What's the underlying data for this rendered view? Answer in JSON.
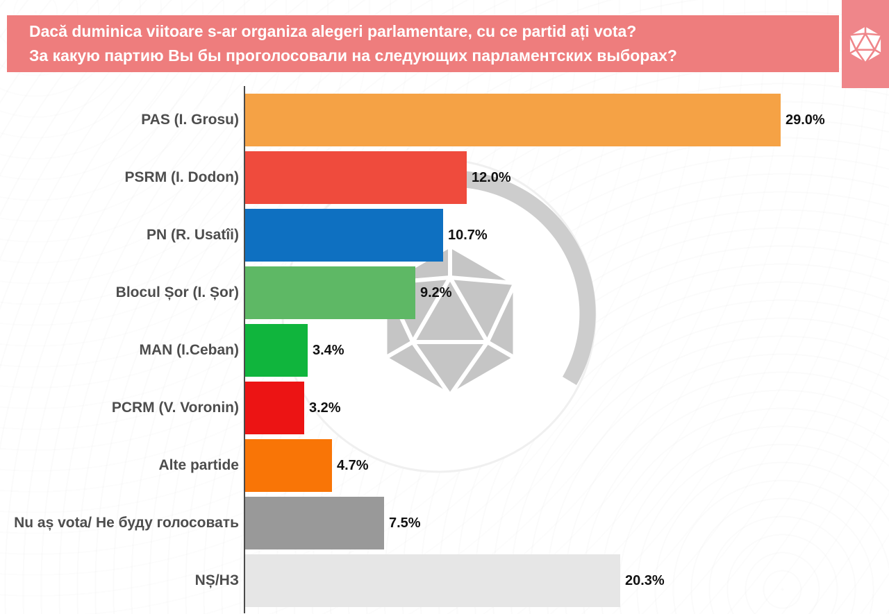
{
  "header": {
    "line1": "Dacă duminica viitoare s-ar organiza alegeri parlamentare, cu ce partid ați vota?",
    "line2": "За какую партию Вы бы проголосовали на следующих парламентских выборах?",
    "bg_color": "#ee7d7d",
    "text_color": "#ffffff"
  },
  "logo": {
    "icon": "d20-icosahedron",
    "box_color": "#ef868a",
    "icon_color": "#ffffff"
  },
  "watermark": {
    "icon": "d20-icosahedron",
    "ring_color": "#cdcdcd",
    "d20_color": "#c5c5c5",
    "circle_color": "#ffffff",
    "circle_edge_color": "#f0f0f0"
  },
  "chart_data": {
    "type": "bar",
    "orientation": "horizontal",
    "grid": false,
    "xlim": [
      0,
      30
    ],
    "axis_color": "#4a4a4a",
    "label_color": "#4d4d4d",
    "value_color": "#111111",
    "categories": [
      "PAS (I. Grosu)",
      "PSRM (I. Dodon)",
      "PN (R. Usatîi)",
      "Blocul Șor (I. Șor)",
      "MAN (I.Ceban)",
      "PCRM (V. Voronin)",
      "Alte partide",
      "Nu aș vota/ Не буду голосовать",
      "NȘ/НЗ"
    ],
    "values": [
      29.0,
      12.0,
      10.7,
      9.2,
      3.4,
      3.2,
      4.7,
      7.5,
      20.3
    ],
    "value_labels": [
      "29.0%",
      "12.0%",
      "10.7%",
      "9.2%",
      "3.4%",
      "3.2%",
      "4.7%",
      "7.5%",
      "20.3%"
    ],
    "bar_colors": [
      "#f5a245",
      "#ef4b3d",
      "#0e70c1",
      "#5eb865",
      "#10b53d",
      "#ec1414",
      "#f97506",
      "#999999",
      "#e6e6e6"
    ]
  }
}
